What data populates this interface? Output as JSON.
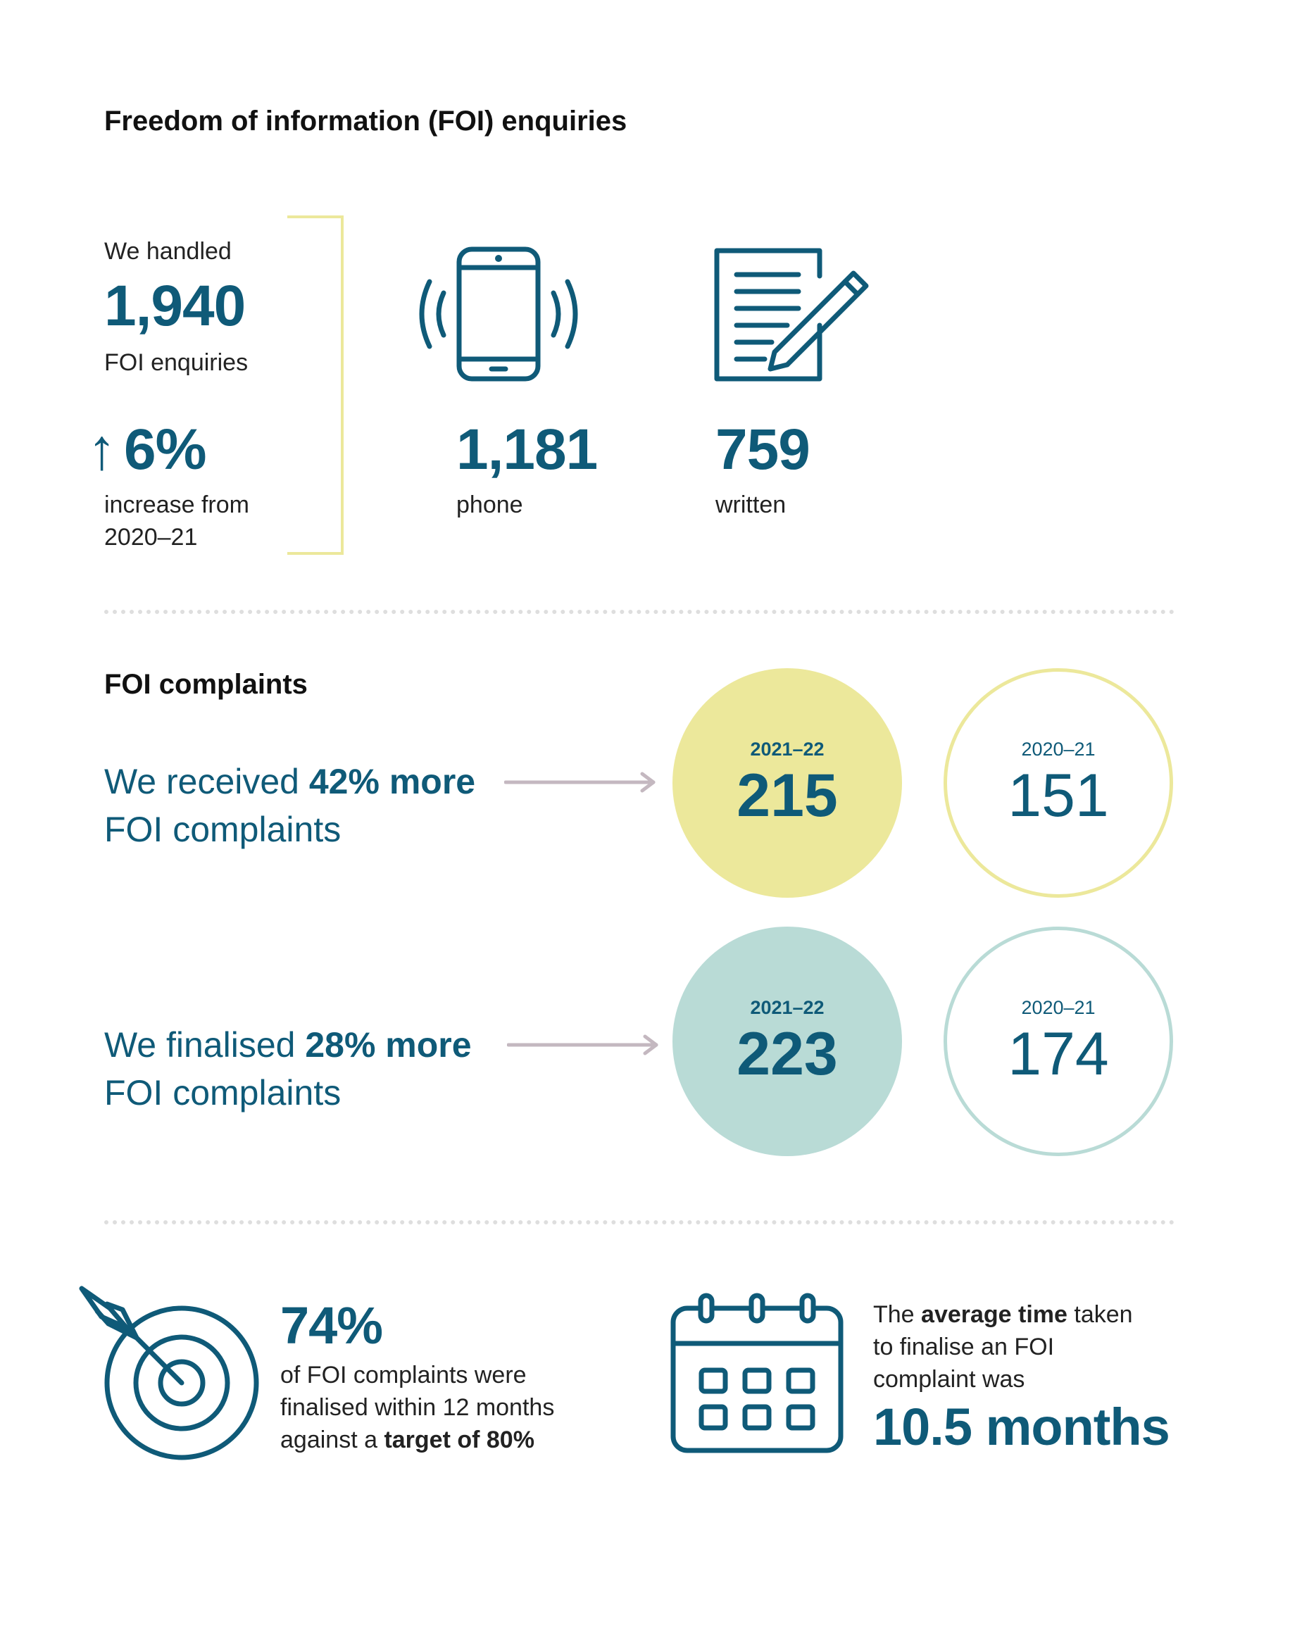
{
  "enquiries": {
    "title": "Freedom of information (FOI) enquiries",
    "handled_label": "We handled",
    "total": "1,940",
    "total_label": "FOI enquiries",
    "change_arrow": "↑",
    "change_value": "6%",
    "change_label_1": "increase from",
    "change_label_2": "2020–21",
    "phone_value": "1,181",
    "phone_label": "phone",
    "written_value": "759",
    "written_label": "written",
    "icons": [
      "phone-ringing-icon",
      "document-pen-icon"
    ]
  },
  "complaints": {
    "title": "FOI complaints",
    "received": {
      "pre": "We received ",
      "bold": "42% more",
      "line2": "FOI complaints",
      "current_year": "2021–22",
      "current_value": "215",
      "prior_year": "2020–21",
      "prior_value": "151"
    },
    "finalised": {
      "pre": "We finalised ",
      "bold": "28% more",
      "line2": "FOI complaints",
      "current_year": "2021–22",
      "current_value": "223",
      "prior_year": "2020–21",
      "prior_value": "174"
    }
  },
  "stats": {
    "target": {
      "value": "74%",
      "line1": "of FOI complaints were",
      "line2": "finalised within 12 months",
      "line3_pre": "against a ",
      "line3_bold": "target of 80%"
    },
    "average": {
      "line1_pre": "The ",
      "line1_bold": "average time",
      "line1_post": " taken",
      "line2": "to finalise an FOI",
      "line3": "complaint was",
      "value": "10.5 months"
    },
    "icons": [
      "target-icon",
      "calendar-icon"
    ]
  },
  "colors": {
    "brand_blue": "#0f5a78",
    "yellow": "#ece89b",
    "teal": "#b9dbd6",
    "arrow_grey": "#c4b8c0",
    "divider": "#dedede"
  }
}
